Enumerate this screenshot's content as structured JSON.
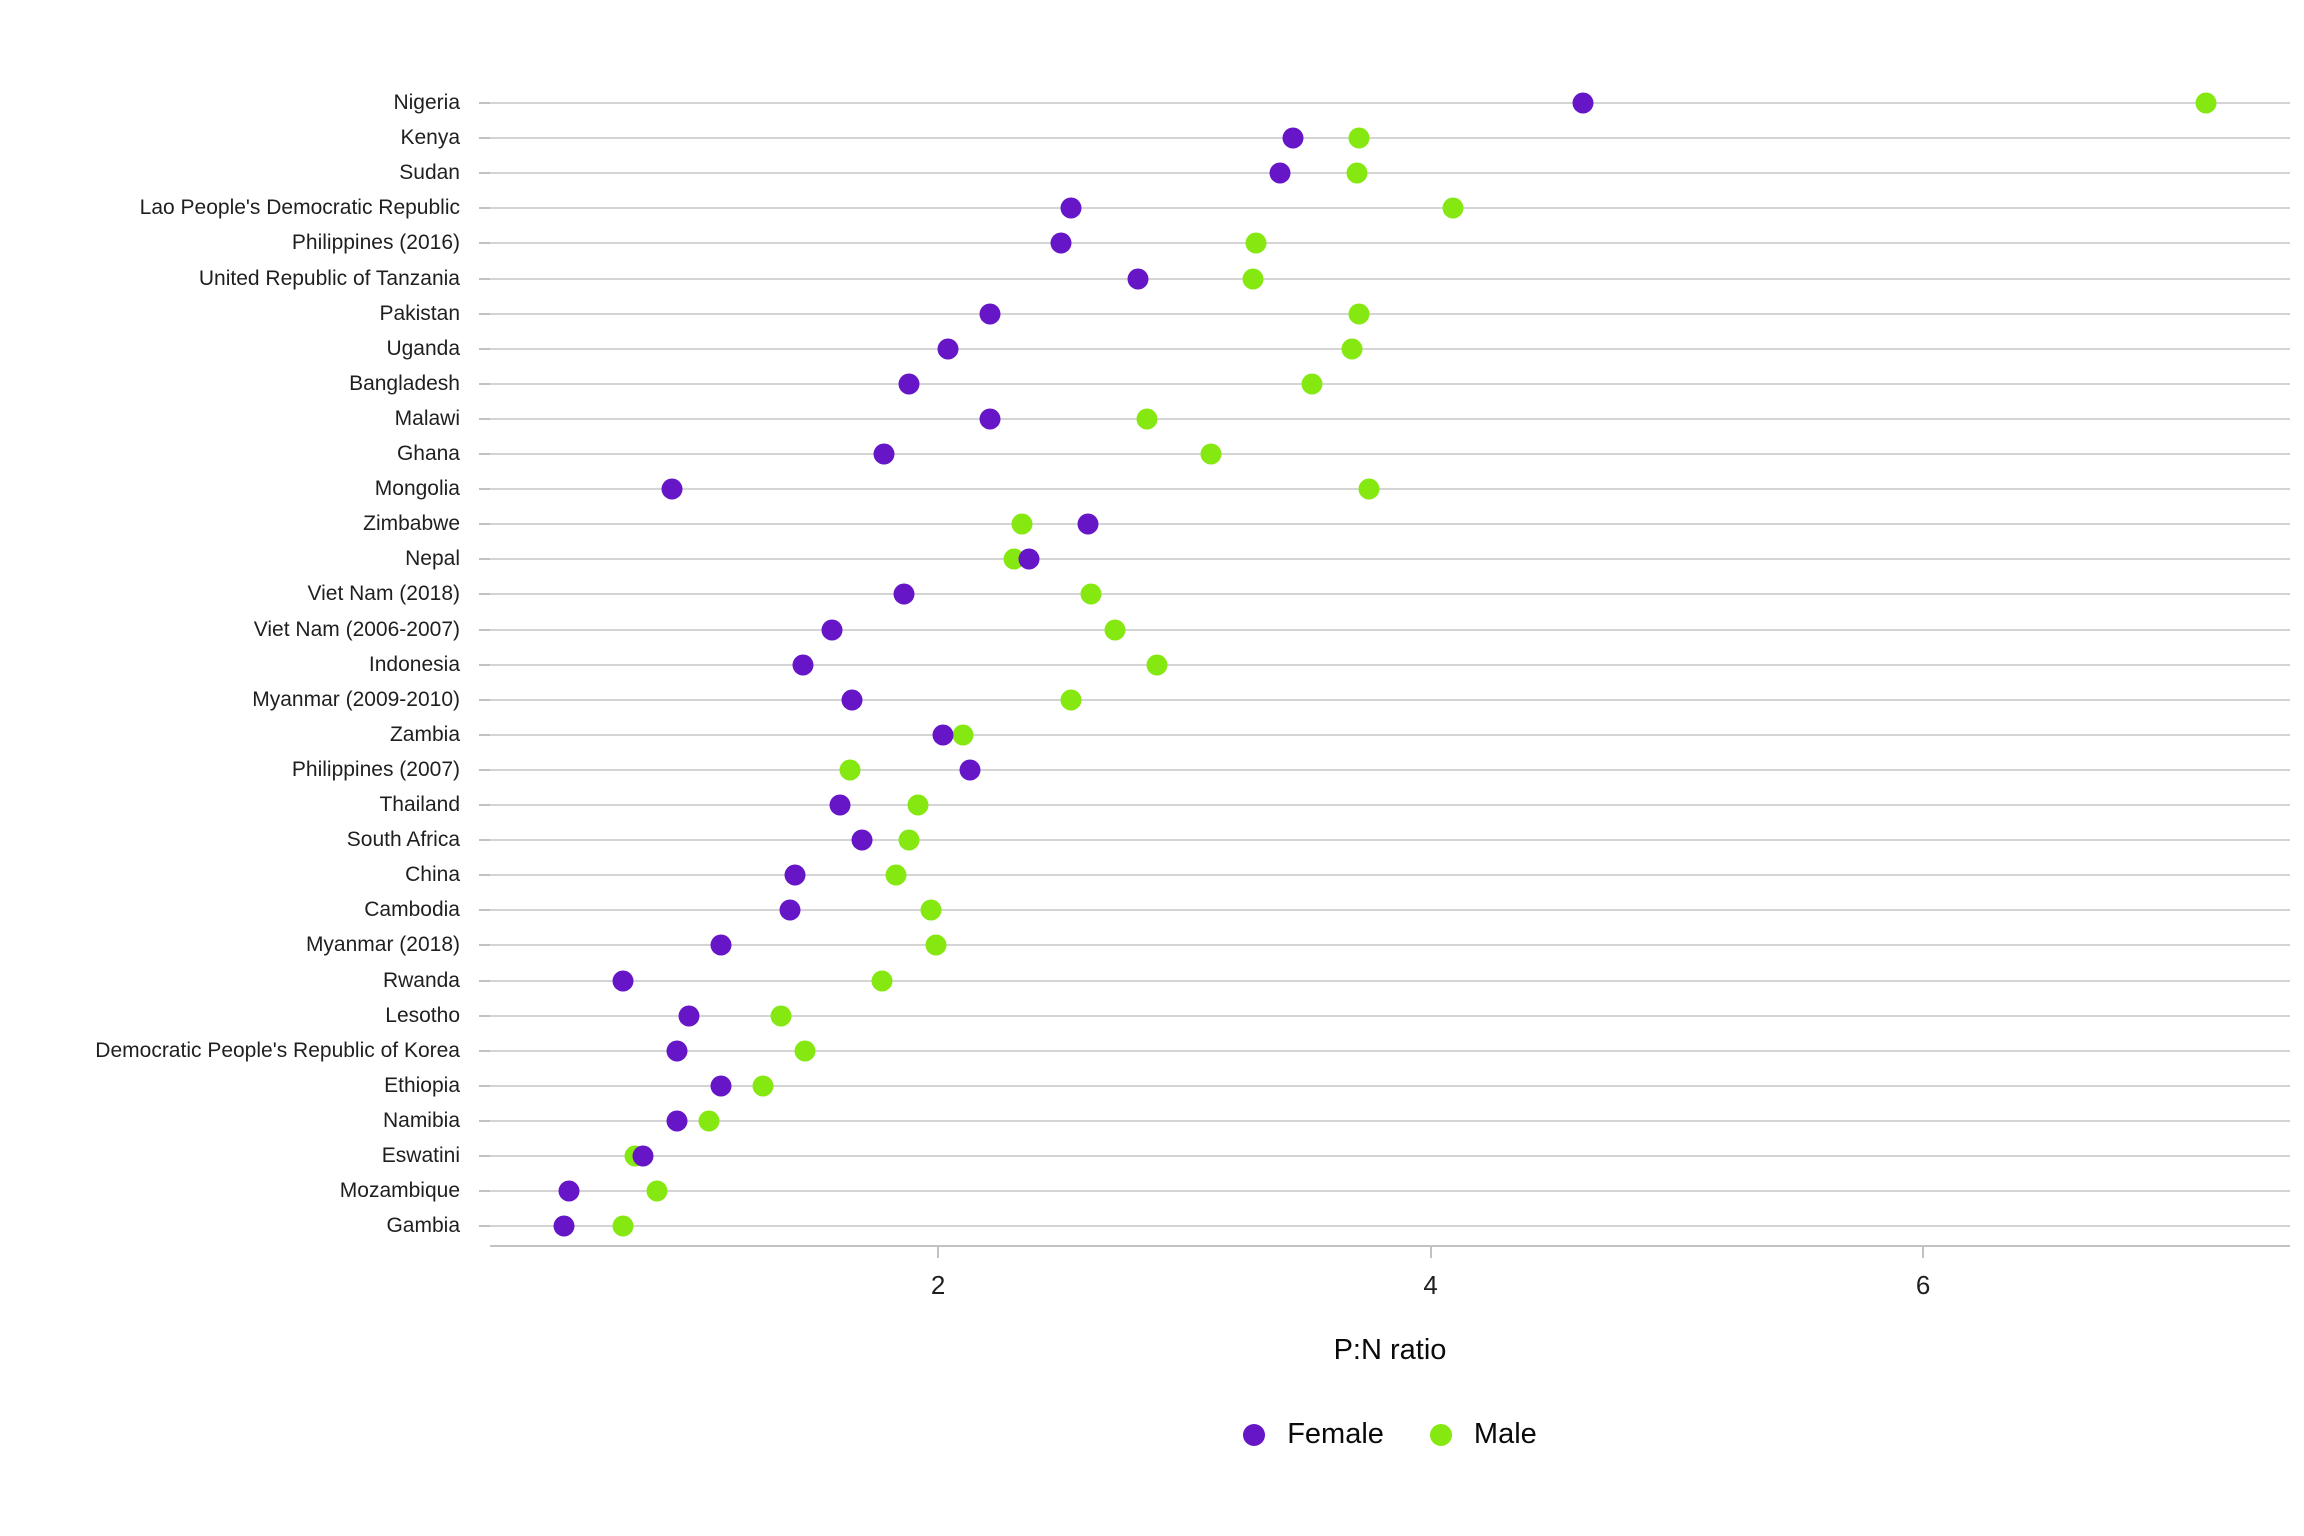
{
  "chart_data": {
    "type": "scatter",
    "variant": "dot-plot",
    "title": "",
    "xlabel": "P:N ratio",
    "ylabel": "",
    "xlim": [
      0.18,
      7.49
    ],
    "x_ticks": [
      2,
      4,
      6
    ],
    "grid": "horizontal-only",
    "legend_position": "bottom-center",
    "categories": [
      "Nigeria",
      "Kenya",
      "Sudan",
      "Lao People's Democratic Republic",
      "Philippines (2016)",
      "United Republic of Tanzania",
      "Pakistan",
      "Uganda",
      "Bangladesh",
      "Malawi",
      "Ghana",
      "Mongolia",
      "Zimbabwe",
      "Nepal",
      "Viet Nam (2018)",
      "Viet Nam (2006-2007)",
      "Indonesia",
      "Myanmar (2009-2010)",
      "Zambia",
      "Philippines (2007)",
      "Thailand",
      "South Africa",
      "China",
      "Cambodia",
      "Myanmar (2018)",
      "Rwanda",
      "Lesotho",
      "Democratic People's Republic of Korea",
      "Ethiopia",
      "Namibia",
      "Eswatini",
      "Mozambique",
      "Gambia"
    ],
    "series": [
      {
        "name": "Male",
        "color": "#85E811",
        "values": [
          7.15,
          3.71,
          3.7,
          4.09,
          3.29,
          3.28,
          3.71,
          3.68,
          3.52,
          2.85,
          3.11,
          3.75,
          2.34,
          2.31,
          2.62,
          2.72,
          2.89,
          2.54,
          2.1,
          1.64,
          1.92,
          1.88,
          1.83,
          1.97,
          1.99,
          1.77,
          1.36,
          1.46,
          1.29,
          1.07,
          0.77,
          0.86,
          0.72
        ]
      },
      {
        "name": "Female",
        "color": "#6615C7",
        "values": [
          4.62,
          3.44,
          3.39,
          2.54,
          2.5,
          2.81,
          2.21,
          2.04,
          1.88,
          2.21,
          1.78,
          0.92,
          2.61,
          2.37,
          1.86,
          1.57,
          1.45,
          1.65,
          2.02,
          2.13,
          1.6,
          1.69,
          1.42,
          1.4,
          1.12,
          0.72,
          0.99,
          0.94,
          1.12,
          0.94,
          0.8,
          0.5,
          0.48
        ]
      }
    ],
    "legend": [
      {
        "label": "Female",
        "color": "#6615C7"
      },
      {
        "label": "Male",
        "color": "#85E811"
      }
    ],
    "colors": {
      "background": "#ffffff",
      "gridline": "#d4d4d4",
      "axis": "#c2c2c2",
      "text": "#1f1f1f"
    }
  }
}
